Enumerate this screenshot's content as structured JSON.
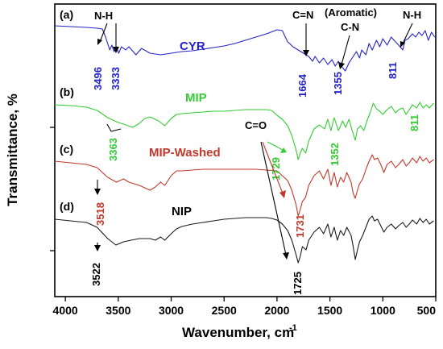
{
  "chart_data": {
    "type": "line",
    "title": "",
    "xlabel": "Wavenumber, cm",
    "xlabel_sup": "-1",
    "ylabel": "Transmittance, %",
    "x_ticks": [
      "4000",
      "3500",
      "3000",
      "2500",
      "2000",
      "1500",
      "1000",
      "500"
    ],
    "xlim": [
      4100,
      500
    ],
    "x_reversed": true,
    "grid": false,
    "series": [
      {
        "name": "CYR",
        "panel": "(a)",
        "color": "#2323c8",
        "points": [
          [
            4100,
            32
          ],
          [
            3950,
            33
          ],
          [
            3800,
            34
          ],
          [
            3700,
            35
          ],
          [
            3650,
            36
          ],
          [
            3620,
            46
          ],
          [
            3600,
            54
          ],
          [
            3580,
            62
          ],
          [
            3560,
            56
          ],
          [
            3540,
            64
          ],
          [
            3520,
            58
          ],
          [
            3496,
            66
          ],
          [
            3470,
            58
          ],
          [
            3430,
            62
          ],
          [
            3400,
            58
          ],
          [
            3333,
            68
          ],
          [
            3280,
            60
          ],
          [
            3200,
            66
          ],
          [
            3100,
            68
          ],
          [
            3000,
            66
          ],
          [
            2900,
            64
          ],
          [
            2800,
            63
          ],
          [
            2700,
            61
          ],
          [
            2600,
            59
          ],
          [
            2500,
            57
          ],
          [
            2400,
            54
          ],
          [
            2300,
            50
          ],
          [
            2200,
            46
          ],
          [
            2100,
            42
          ],
          [
            2000,
            37
          ],
          [
            1950,
            38
          ],
          [
            1900,
            52
          ],
          [
            1880,
            54
          ],
          [
            1850,
            58
          ],
          [
            1800,
            62
          ],
          [
            1750,
            66
          ],
          [
            1700,
            70
          ],
          [
            1664,
            76
          ],
          [
            1640,
            70
          ],
          [
            1600,
            78
          ],
          [
            1560,
            72
          ],
          [
            1520,
            80
          ],
          [
            1480,
            74
          ],
          [
            1450,
            82
          ],
          [
            1420,
            76
          ],
          [
            1380,
            84
          ],
          [
            1355,
            88
          ],
          [
            1320,
            78
          ],
          [
            1280,
            70
          ],
          [
            1250,
            64
          ],
          [
            1220,
            72
          ],
          [
            1200,
            62
          ],
          [
            1160,
            68
          ],
          [
            1130,
            54
          ],
          [
            1100,
            62
          ],
          [
            1060,
            50
          ],
          [
            1030,
            58
          ],
          [
            1000,
            48
          ],
          [
            960,
            56
          ],
          [
            920,
            46
          ],
          [
            880,
            52
          ],
          [
            850,
            56
          ],
          [
            811,
            62
          ],
          [
            790,
            50
          ],
          [
            760,
            48
          ],
          [
            720,
            42
          ],
          [
            690,
            46
          ],
          [
            660,
            40
          ],
          [
            630,
            44
          ],
          [
            600,
            38
          ],
          [
            570,
            50
          ],
          [
            540,
            40
          ],
          [
            510,
            46
          ]
        ]
      },
      {
        "name": "MIP",
        "panel": "(b)",
        "color": "#33cc33",
        "points": [
          [
            4100,
            130
          ],
          [
            3950,
            131
          ],
          [
            3800,
            133
          ],
          [
            3700,
            137
          ],
          [
            3600,
            146
          ],
          [
            3500,
            152
          ],
          [
            3450,
            154
          ],
          [
            3363,
            158
          ],
          [
            3300,
            153
          ],
          [
            3250,
            147
          ],
          [
            3200,
            145
          ],
          [
            3120,
            150
          ],
          [
            3060,
            156
          ],
          [
            3000,
            147
          ],
          [
            2950,
            142
          ],
          [
            2900,
            141
          ],
          [
            2800,
            140
          ],
          [
            2700,
            139
          ],
          [
            2600,
            138
          ],
          [
            2500,
            138
          ],
          [
            2400,
            137
          ],
          [
            2300,
            136
          ],
          [
            2200,
            136
          ],
          [
            2100,
            136
          ],
          [
            2050,
            137
          ],
          [
            2000,
            143
          ],
          [
            1950,
            148
          ],
          [
            1900,
            156
          ],
          [
            1860,
            168
          ],
          [
            1820,
            186
          ],
          [
            1800,
            198
          ],
          [
            1780,
            190
          ],
          [
            1760,
            184
          ],
          [
            1729,
            190
          ],
          [
            1700,
            175
          ],
          [
            1650,
            160
          ],
          [
            1600,
            155
          ],
          [
            1550,
            160
          ],
          [
            1520,
            148
          ],
          [
            1490,
            162
          ],
          [
            1460,
            146
          ],
          [
            1420,
            162
          ],
          [
            1380,
            150
          ],
          [
            1352,
            158
          ],
          [
            1320,
            148
          ],
          [
            1290,
            162
          ],
          [
            1260,
            174
          ],
          [
            1240,
            160
          ],
          [
            1210,
            156
          ],
          [
            1180,
            162
          ],
          [
            1150,
            150
          ],
          [
            1120,
            140
          ],
          [
            1090,
            128
          ],
          [
            1060,
            135
          ],
          [
            1030,
            138
          ],
          [
            1000,
            142
          ],
          [
            960,
            136
          ],
          [
            920,
            132
          ],
          [
            880,
            140
          ],
          [
            850,
            136
          ],
          [
            811,
            134
          ],
          [
            780,
            142
          ],
          [
            750,
            136
          ],
          [
            720,
            130
          ],
          [
            680,
            134
          ],
          [
            650,
            127
          ],
          [
            620,
            134
          ],
          [
            590,
            130
          ],
          [
            560,
            134
          ],
          [
            520,
            128
          ]
        ]
      },
      {
        "name": "MIP-Washed",
        "panel": "(c)",
        "color": "#c0392b",
        "points": [
          [
            4100,
            200
          ],
          [
            3950,
            202
          ],
          [
            3800,
            204
          ],
          [
            3700,
            208
          ],
          [
            3600,
            220
          ],
          [
            3518,
            226
          ],
          [
            3450,
            222
          ],
          [
            3400,
            226
          ],
          [
            3300,
            230
          ],
          [
            3200,
            236
          ],
          [
            3150,
            232
          ],
          [
            3100,
            226
          ],
          [
            3060,
            230
          ],
          [
            3000,
            218
          ],
          [
            2950,
            212
          ],
          [
            2900,
            212
          ],
          [
            2800,
            211
          ],
          [
            2700,
            210
          ],
          [
            2600,
            210
          ],
          [
            2500,
            210
          ],
          [
            2400,
            210
          ],
          [
            2300,
            210
          ],
          [
            2200,
            210
          ],
          [
            2100,
            211
          ],
          [
            2000,
            212
          ],
          [
            1950,
            218
          ],
          [
            1900,
            224
          ],
          [
            1860,
            236
          ],
          [
            1820,
            254
          ],
          [
            1800,
            268
          ],
          [
            1780,
            260
          ],
          [
            1760,
            250
          ],
          [
            1731,
            245
          ],
          [
            1700,
            230
          ],
          [
            1650,
            218
          ],
          [
            1600,
            212
          ],
          [
            1560,
            222
          ],
          [
            1520,
            210
          ],
          [
            1490,
            230
          ],
          [
            1460,
            214
          ],
          [
            1430,
            232
          ],
          [
            1400,
            220
          ],
          [
            1370,
            226
          ],
          [
            1340,
            214
          ],
          [
            1300,
            226
          ],
          [
            1280,
            240
          ],
          [
            1260,
            246
          ],
          [
            1240,
            236
          ],
          [
            1220,
            228
          ],
          [
            1190,
            222
          ],
          [
            1160,
            210
          ],
          [
            1130,
            200
          ],
          [
            1100,
            192
          ],
          [
            1080,
            198
          ],
          [
            1050,
            196
          ],
          [
            1020,
            204
          ],
          [
            990,
            214
          ],
          [
            960,
            204
          ],
          [
            920,
            200
          ],
          [
            880,
            208
          ],
          [
            850,
            204
          ],
          [
            811,
            198
          ],
          [
            780,
            206
          ],
          [
            750,
            202
          ],
          [
            720,
            196
          ],
          [
            680,
            202
          ],
          [
            650,
            194
          ],
          [
            620,
            200
          ],
          [
            590,
            196
          ],
          [
            560,
            202
          ],
          [
            520,
            198
          ]
        ]
      },
      {
        "name": "NIP",
        "panel": "(d)",
        "color": "#1a1a1a",
        "points": [
          [
            4100,
            272
          ],
          [
            3950,
            274
          ],
          [
            3800,
            276
          ],
          [
            3700,
            282
          ],
          [
            3600,
            296
          ],
          [
            3522,
            304
          ],
          [
            3450,
            300
          ],
          [
            3380,
            298
          ],
          [
            3300,
            296
          ],
          [
            3200,
            296
          ],
          [
            3150,
            298
          ],
          [
            3100,
            294
          ],
          [
            3060,
            298
          ],
          [
            3000,
            290
          ],
          [
            2950,
            284
          ],
          [
            2900,
            281
          ],
          [
            2800,
            278
          ],
          [
            2700,
            276
          ],
          [
            2600,
            274
          ],
          [
            2500,
            272
          ],
          [
            2400,
            271
          ],
          [
            2300,
            270
          ],
          [
            2200,
            270
          ],
          [
            2100,
            270
          ],
          [
            2050,
            271
          ],
          [
            2000,
            273
          ],
          [
            1950,
            278
          ],
          [
            1900,
            286
          ],
          [
            1860,
            298
          ],
          [
            1820,
            316
          ],
          [
            1800,
            326
          ],
          [
            1780,
            318
          ],
          [
            1760,
            306
          ],
          [
            1725,
            310
          ],
          [
            1700,
            298
          ],
          [
            1650,
            288
          ],
          [
            1600,
            282
          ],
          [
            1560,
            290
          ],
          [
            1520,
            278
          ],
          [
            1490,
            294
          ],
          [
            1460,
            282
          ],
          [
            1430,
            298
          ],
          [
            1400,
            286
          ],
          [
            1370,
            292
          ],
          [
            1340,
            282
          ],
          [
            1300,
            292
          ],
          [
            1280,
            306
          ],
          [
            1260,
            322
          ],
          [
            1240,
            310
          ],
          [
            1220,
            300
          ],
          [
            1190,
            292
          ],
          [
            1160,
            282
          ],
          [
            1130,
            272
          ],
          [
            1100,
            268
          ],
          [
            1080,
            274
          ],
          [
            1050,
            272
          ],
          [
            1020,
            280
          ],
          [
            990,
            288
          ],
          [
            960,
            282
          ],
          [
            920,
            278
          ],
          [
            880,
            284
          ],
          [
            850,
            280
          ],
          [
            811,
            276
          ],
          [
            780,
            282
          ],
          [
            750,
            278
          ],
          [
            720,
            273
          ],
          [
            680,
            278
          ],
          [
            650,
            271
          ],
          [
            620,
            276
          ],
          [
            590,
            272
          ],
          [
            560,
            278
          ],
          [
            520,
            274
          ]
        ]
      }
    ],
    "annotations": {
      "cyr": {
        "label": "CYR",
        "nh1": "N-H",
        "cn_double": "C=N",
        "aromatic": "(Aromatic)",
        "cn": "C-N",
        "nh2": "N-H",
        "p3496": "3496",
        "p3333": "3333",
        "p1664": "1664",
        "p1355": "1355",
        "p811": "811"
      },
      "mip": {
        "label": "MIP",
        "p3363": "3363",
        "p1729": "1729",
        "p1352": "1352",
        "p811": "811"
      },
      "washed": {
        "label": "MIP-Washed",
        "co": "C=O",
        "p3518": "3518",
        "p1731": "1731"
      },
      "nip": {
        "label": "NIP",
        "p3522": "3522",
        "p1725": "1725"
      }
    },
    "colors": {
      "cyr": "#2323c8",
      "mip": "#33cc33",
      "washed": "#c0392b",
      "nip": "#1a1a1a"
    }
  }
}
